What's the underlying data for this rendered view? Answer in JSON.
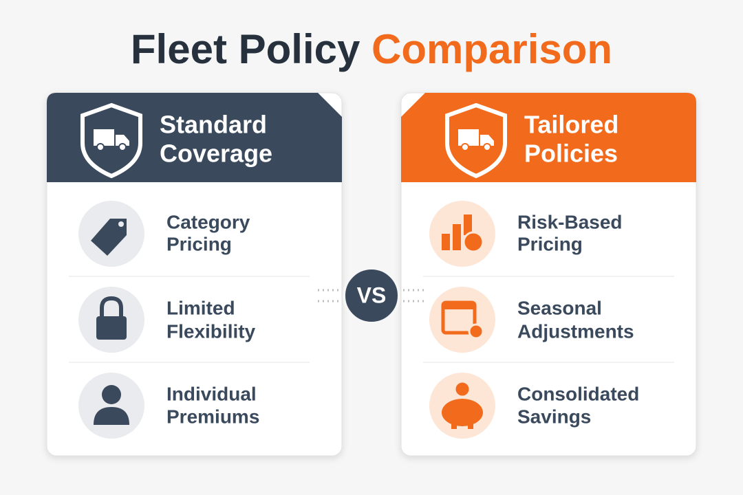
{
  "title": {
    "lead": "Fleet Policy",
    "accent": "Comparison"
  },
  "versus": "VS",
  "panels": [
    {
      "header": [
        "Standard",
        "Coverage"
      ],
      "items": [
        {
          "lines": [
            "Category",
            "Pricing"
          ]
        },
        {
          "lines": [
            "Limited",
            "Flexibility"
          ]
        },
        {
          "lines": [
            "Individual",
            "Premiums"
          ]
        }
      ]
    },
    {
      "header": [
        "Tailored",
        "Policies"
      ],
      "items": [
        {
          "lines": [
            "Risk-Based",
            "Pricing"
          ]
        },
        {
          "lines": [
            "Seasonal",
            "Adjustments"
          ]
        },
        {
          "lines": [
            "Consolidated",
            "Savings"
          ]
        }
      ]
    }
  ]
}
